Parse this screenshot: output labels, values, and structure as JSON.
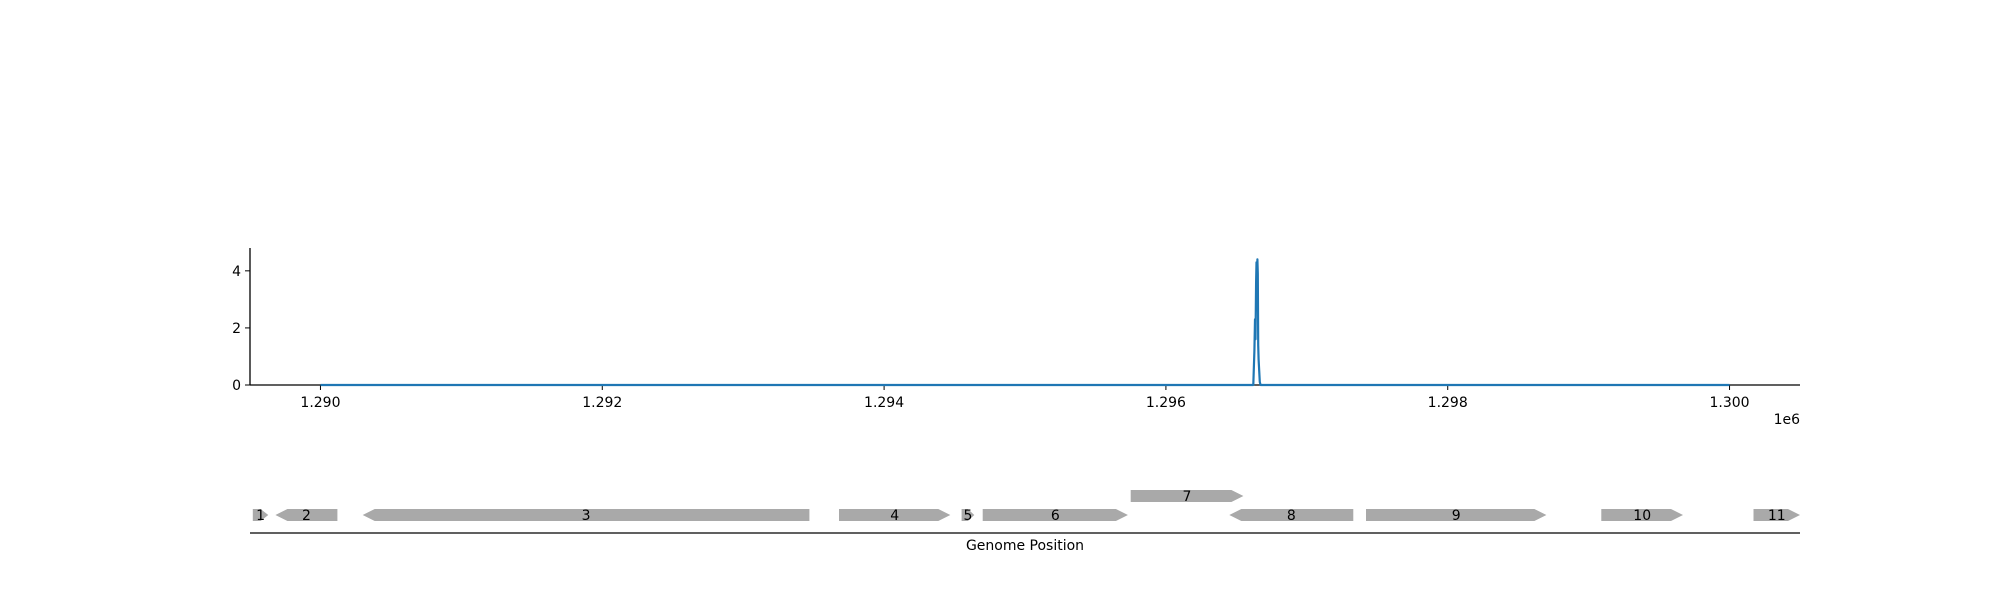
{
  "chart_data": {
    "type": "line",
    "title": "",
    "xlabel": "Genome Position",
    "ylabel": "",
    "x_offset_label": "1e6",
    "xlim": [
      1289500,
      1300500
    ],
    "ylim": [
      0,
      4.8
    ],
    "x_ticks": [
      1290000,
      1292000,
      1294000,
      1296000,
      1298000,
      1300000
    ],
    "x_tick_labels": [
      "1.290",
      "1.292",
      "1.294",
      "1.296",
      "1.298",
      "1.300"
    ],
    "y_ticks": [
      0,
      2,
      4
    ],
    "y_tick_labels": [
      "0",
      "2",
      "4"
    ],
    "grid": false,
    "legend": "none",
    "line_color": "#1f77b4",
    "gene_color": "#a9a9a9",
    "series": [
      {
        "x": [
          1290000,
          1296620,
          1296628,
          1296632,
          1296636,
          1296640,
          1296643,
          1296646,
          1296649,
          1296652,
          1296655,
          1296658,
          1296662,
          1296666,
          1296672,
          1300000
        ],
        "y": [
          0,
          0,
          1.2,
          2.3,
          1.6,
          3.6,
          4.3,
          2.9,
          4.4,
          3.9,
          1.4,
          0.9,
          0.5,
          0.1,
          0,
          0
        ]
      }
    ],
    "genes": [
      {
        "label": "1",
        "start": 1289520,
        "end": 1289630,
        "strand": "+",
        "row": 0
      },
      {
        "label": "2",
        "start": 1289680,
        "end": 1290120,
        "strand": "-",
        "row": 0
      },
      {
        "label": "3",
        "start": 1290300,
        "end": 1293470,
        "strand": "-",
        "row": 0
      },
      {
        "label": "4",
        "start": 1293680,
        "end": 1294470,
        "strand": "+",
        "row": 0
      },
      {
        "label": "5",
        "start": 1294550,
        "end": 1294640,
        "strand": "+",
        "row": 0
      },
      {
        "label": "6",
        "start": 1294700,
        "end": 1295730,
        "strand": "+",
        "row": 0
      },
      {
        "label": "7",
        "start": 1295750,
        "end": 1296550,
        "strand": "+",
        "row": 1
      },
      {
        "label": "8",
        "start": 1296450,
        "end": 1297330,
        "strand": "-",
        "row": 0
      },
      {
        "label": "9",
        "start": 1297420,
        "end": 1298700,
        "strand": "+",
        "row": 0
      },
      {
        "label": "10",
        "start": 1299090,
        "end": 1299670,
        "strand": "+",
        "row": 0
      },
      {
        "label": "11",
        "start": 1300170,
        "end": 1300500,
        "strand": "+",
        "row": 0
      }
    ]
  }
}
